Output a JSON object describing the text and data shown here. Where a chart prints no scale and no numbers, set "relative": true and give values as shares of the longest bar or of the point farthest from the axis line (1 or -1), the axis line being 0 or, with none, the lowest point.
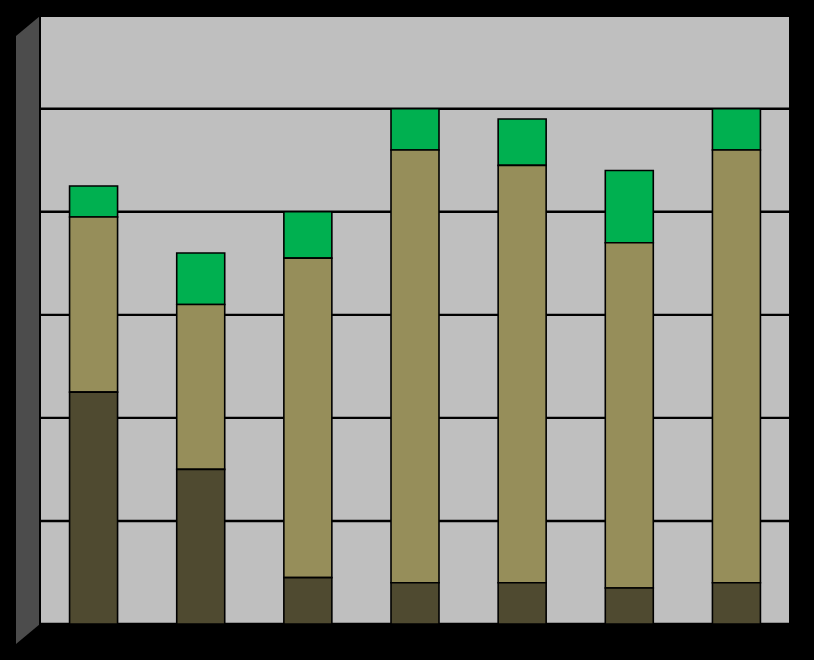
{
  "chart_data": {
    "type": "bar",
    "relative": true,
    "stacked": true,
    "grid": "y",
    "categories": [
      null,
      null,
      null,
      null,
      null,
      null,
      null
    ],
    "series": [
      {
        "color": "#4f4a30",
        "values": [
          0.45,
          0.3,
          0.09,
          0.08,
          0.08,
          0.07,
          0.08
        ]
      },
      {
        "color": "#968e5a",
        "values": [
          0.34,
          0.32,
          0.62,
          0.84,
          0.81,
          0.67,
          0.84
        ]
      },
      {
        "color": "#00b050",
        "values": [
          0.06,
          0.1,
          0.09,
          0.08,
          0.09,
          0.14,
          0.08
        ]
      }
    ]
  }
}
